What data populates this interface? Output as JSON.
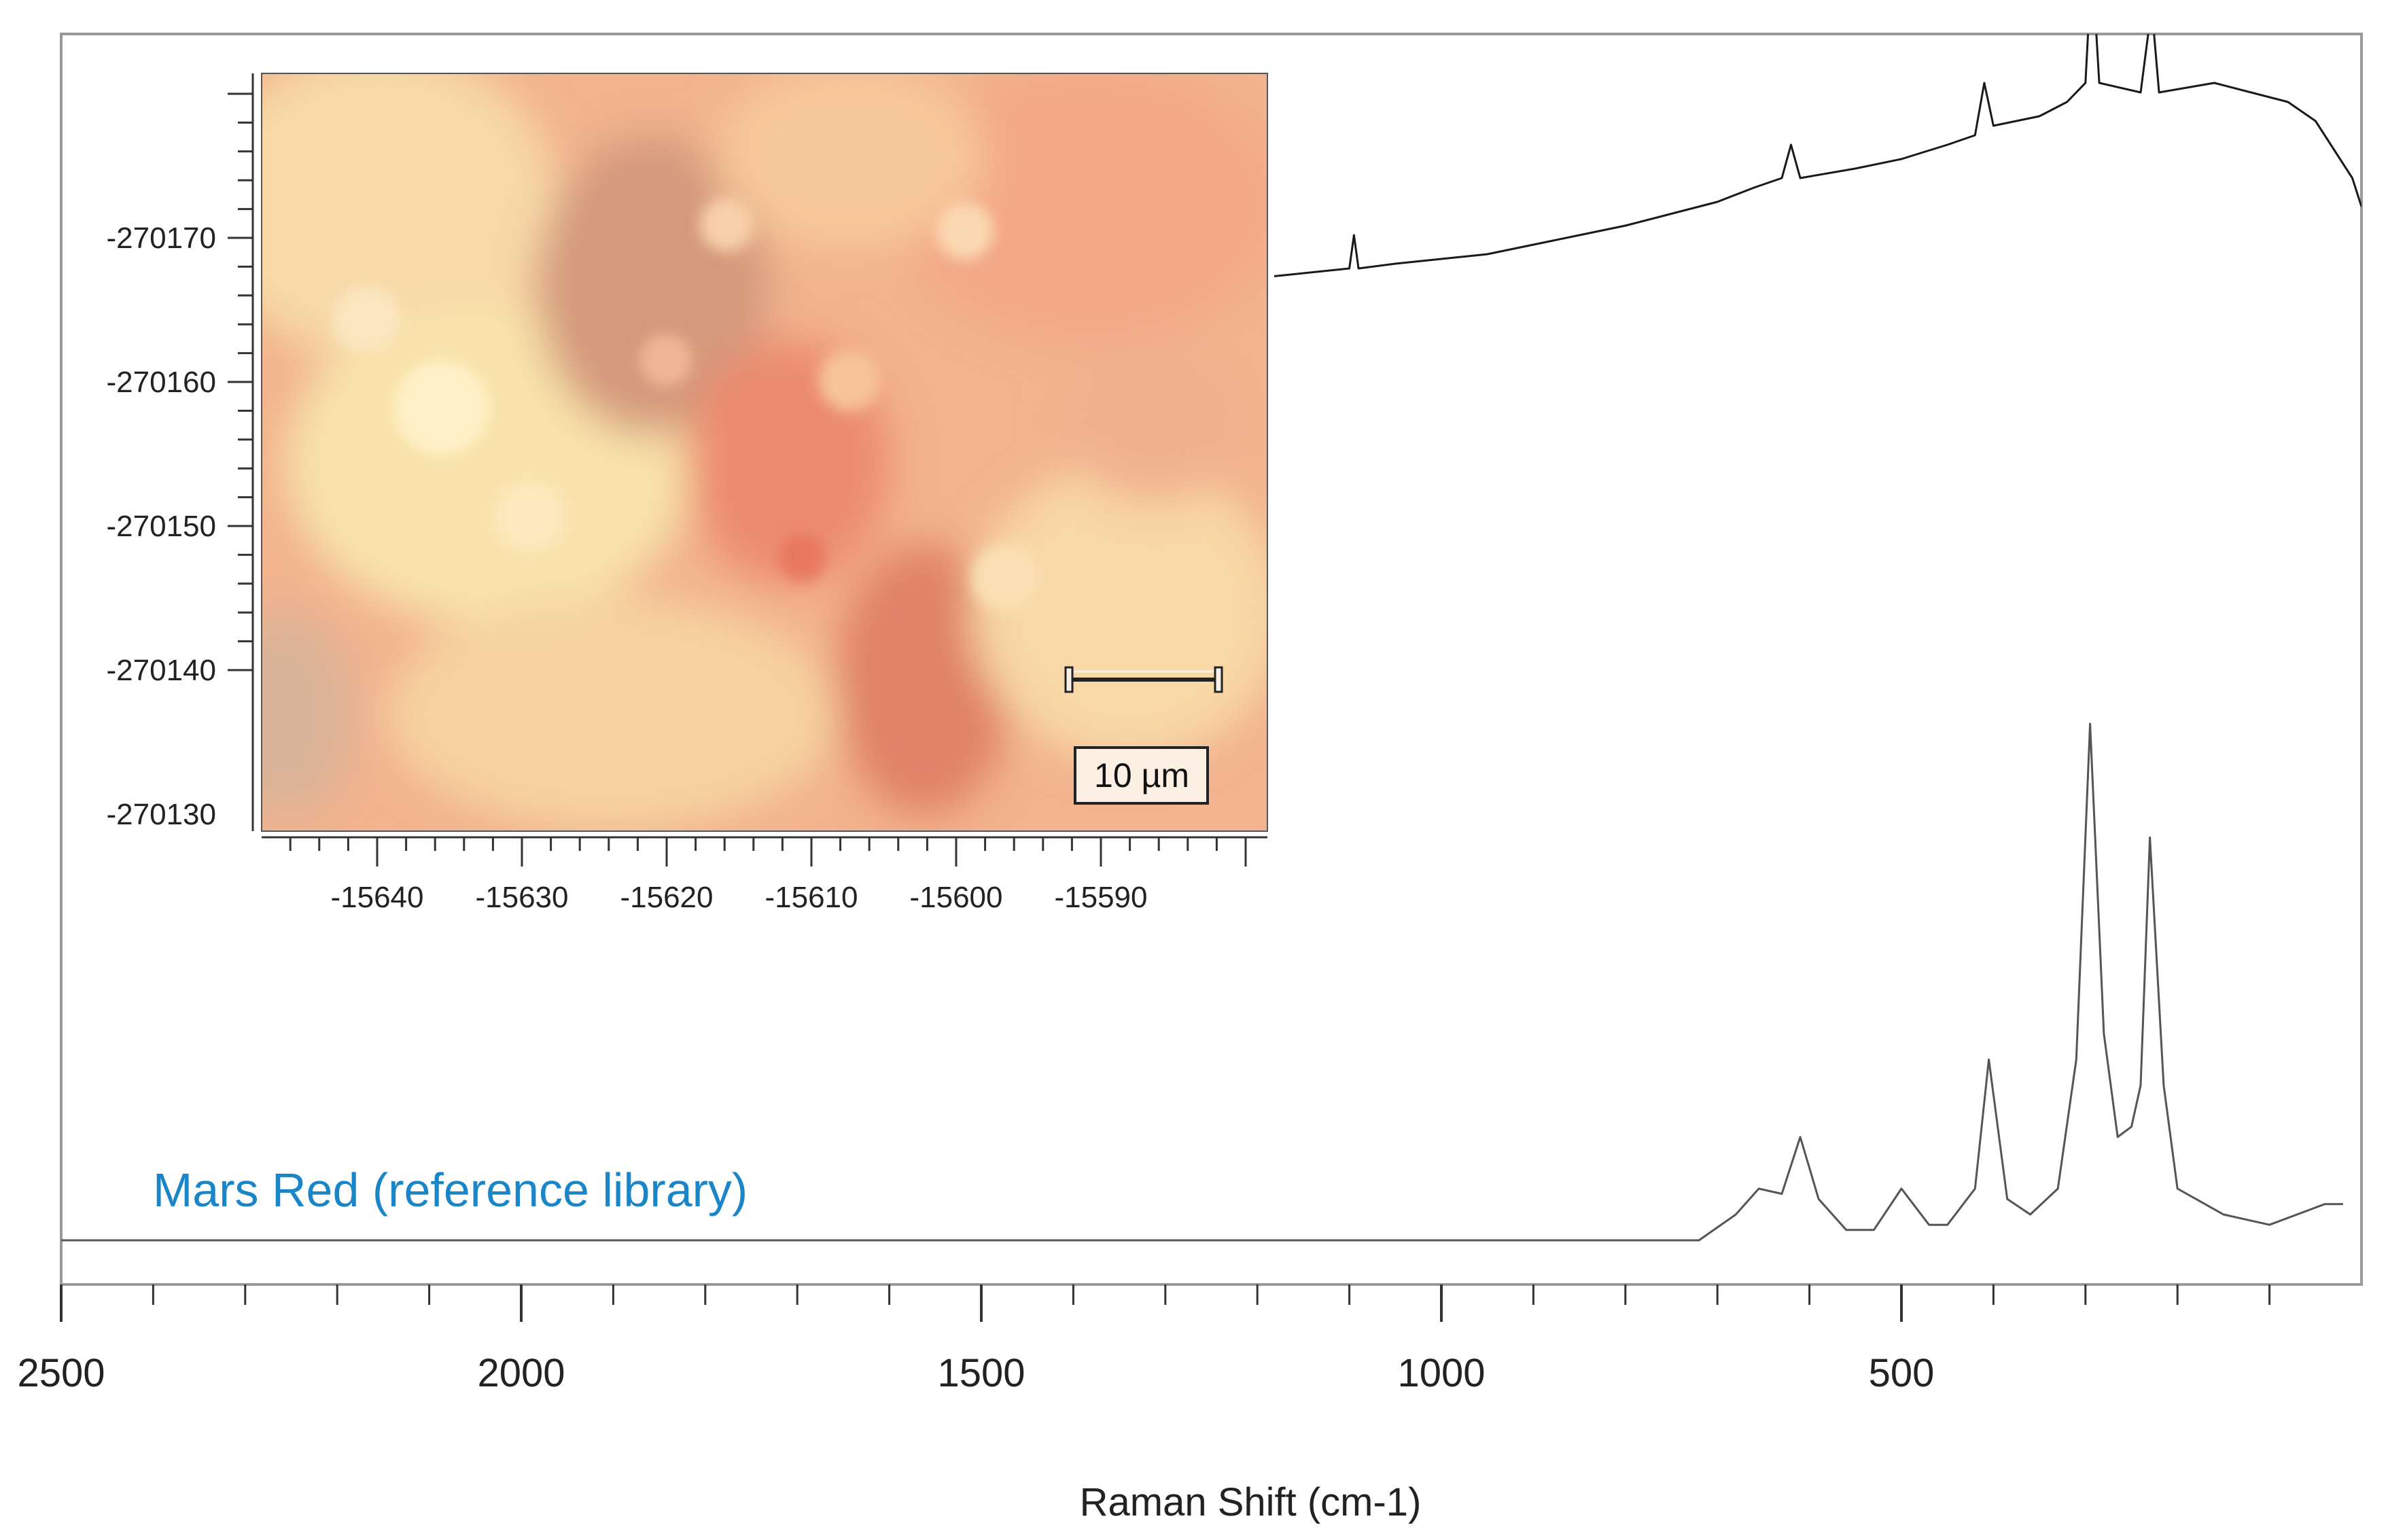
{
  "chart_data": {
    "type": "line",
    "xlabel": "Raman Shift (cm-1)",
    "xlim": [
      2500,
      0
    ],
    "x_ticks": [
      "2500",
      "2000",
      "1500",
      "1000",
      "500"
    ],
    "grid": false,
    "series": [
      {
        "values": [
          [
            1300,
            0.62
          ],
          [
            1250,
            0.62
          ],
          [
            1200,
            0.63
          ],
          [
            1150,
            0.64
          ],
          [
            1100,
            0.65
          ],
          [
            1095,
            0.72
          ],
          [
            1090,
            0.65
          ],
          [
            1050,
            0.66
          ],
          [
            1000,
            0.67
          ],
          [
            950,
            0.68
          ],
          [
            900,
            0.7
          ],
          [
            850,
            0.72
          ],
          [
            800,
            0.74
          ],
          [
            760,
            0.76
          ],
          [
            700,
            0.79
          ],
          [
            660,
            0.82
          ],
          [
            630,
            0.84
          ],
          [
            620,
            0.91
          ],
          [
            610,
            0.84
          ],
          [
            550,
            0.86
          ],
          [
            500,
            0.88
          ],
          [
            450,
            0.91
          ],
          [
            420,
            0.93
          ],
          [
            410,
            1.04
          ],
          [
            400,
            0.95
          ],
          [
            350,
            0.97
          ],
          [
            320,
            1.0
          ],
          [
            300,
            1.04
          ],
          [
            293,
            1.3
          ],
          [
            285,
            1.04
          ],
          [
            240,
            1.02
          ],
          [
            228,
            1.2
          ],
          [
            220,
            1.02
          ],
          [
            160,
            1.04
          ],
          [
            120,
            1.02
          ],
          [
            80,
            1.0
          ],
          [
            50,
            0.96
          ],
          [
            30,
            0.9
          ],
          [
            10,
            0.84
          ],
          [
            0,
            0.78
          ]
        ]
      },
      {
        "values": [
          [
            2500,
            0.0
          ],
          [
            1300,
            0.0
          ],
          [
            720,
            0.0
          ],
          [
            680,
            0.05
          ],
          [
            655,
            0.1
          ],
          [
            630,
            0.09
          ],
          [
            610,
            0.2
          ],
          [
            590,
            0.08
          ],
          [
            560,
            0.02
          ],
          [
            530,
            0.02
          ],
          [
            500,
            0.1
          ],
          [
            470,
            0.03
          ],
          [
            450,
            0.03
          ],
          [
            420,
            0.1
          ],
          [
            405,
            0.35
          ],
          [
            385,
            0.08
          ],
          [
            360,
            0.05
          ],
          [
            330,
            0.1
          ],
          [
            310,
            0.35
          ],
          [
            295,
            1.0
          ],
          [
            280,
            0.4
          ],
          [
            265,
            0.2
          ],
          [
            250,
            0.22
          ],
          [
            240,
            0.3
          ],
          [
            230,
            0.78
          ],
          [
            215,
            0.3
          ],
          [
            200,
            0.1
          ],
          [
            150,
            0.05
          ],
          [
            100,
            0.03
          ],
          [
            70,
            0.05
          ],
          [
            40,
            0.07
          ],
          [
            20,
            0.07
          ]
        ]
      }
    ],
    "annotations": [
      "Mars Red (reference library)"
    ],
    "inset": {
      "x_ticks": [
        "-15640",
        "-15630",
        "-15620",
        "-15610",
        "-15600",
        "-15590"
      ],
      "y_ticks": [
        "-270170",
        "-270160",
        "-270150",
        "-270140",
        "-270130"
      ],
      "scale_bar_label": "10 µm"
    }
  },
  "colors": {
    "measured_line": "#1a1a1a",
    "reference_line": "#555555",
    "reference_label": "#1a86c8",
    "frame": "#999999"
  }
}
